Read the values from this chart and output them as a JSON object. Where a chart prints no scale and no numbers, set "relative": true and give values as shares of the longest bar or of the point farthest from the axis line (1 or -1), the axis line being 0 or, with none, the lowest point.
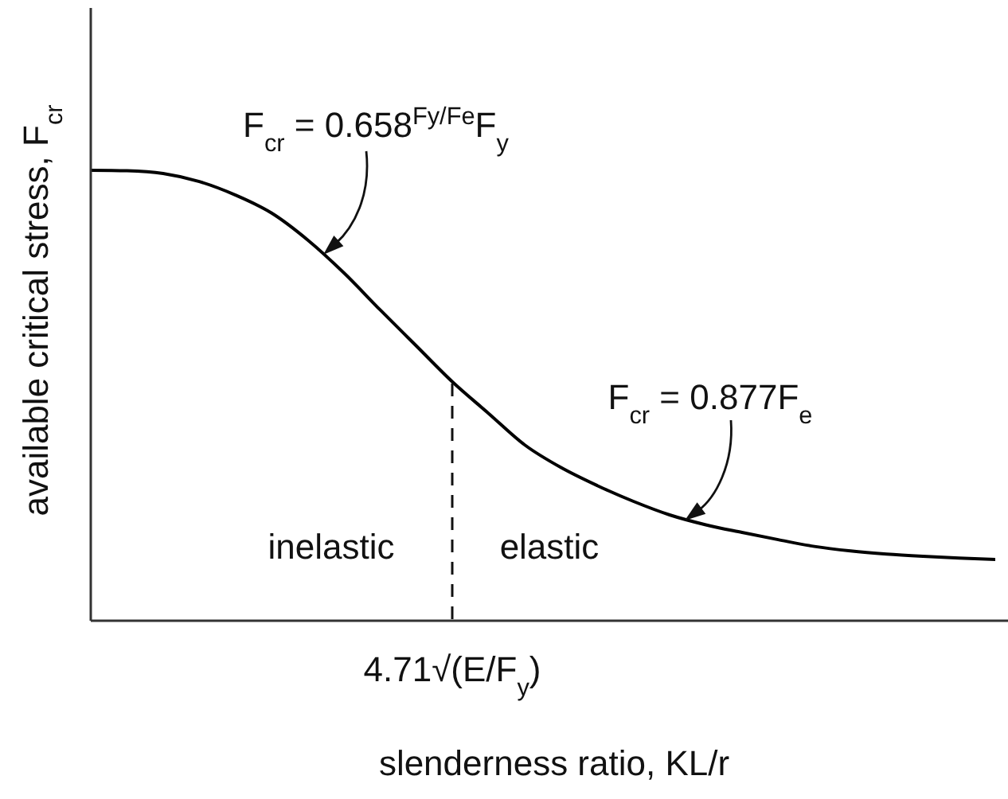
{
  "chart_data": {
    "type": "line",
    "xlabel": "slenderness ratio, KL/r",
    "ylabel": "available critical stress, F$_{cr}$",
    "relative": true,
    "categories": [
      null,
      null,
      null,
      null,
      null,
      null,
      null,
      null,
      null,
      null,
      null,
      null,
      null,
      null,
      null,
      null,
      null,
      null,
      null,
      null,
      null,
      null,
      null,
      null,
      null,
      null
    ],
    "values": [
      1,
      0.999,
      0.993,
      0.975,
      0.945,
      0.905,
      0.845,
      0.772,
      0.69,
      0.61,
      0.53,
      0.46,
      0.39,
      0.34,
      0.3,
      0.265,
      0.235,
      0.213,
      0.196,
      0.18,
      0.165,
      0.155,
      0.148,
      0.143,
      0.139,
      0.136
    ],
    "color": "#000000",
    "marker": "none",
    "line_style": "solid",
    "annotations": [
      "F$_{cr}$ = 0.658$^{Fy/Fe}$F$_{y}$",
      "F$_{cr}$ = 0.877F$_{e}$",
      "inelastic",
      "elastic",
      "4.71√(E/F$_{y}$)"
    ]
  }
}
